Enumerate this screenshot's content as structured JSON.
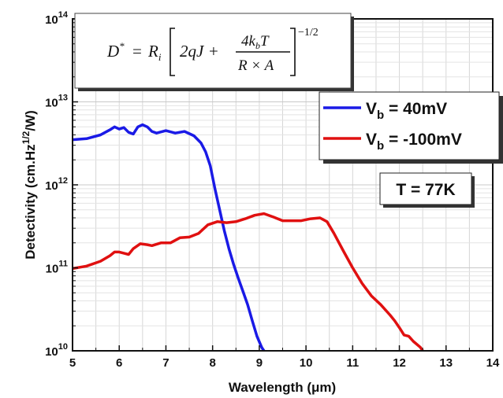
{
  "chart_data": {
    "type": "line",
    "xlabel": "Wavelength (μm)",
    "ylabel": "Detectivity (cm.Hz",
    "ylabel_sup": "1/2",
    "ylabel_tail": "/W)",
    "xlim": [
      5,
      14
    ],
    "ylim_log10": [
      10,
      14
    ],
    "y_scale": "log",
    "grid": true,
    "x_ticks": [
      "5",
      "6",
      "7",
      "8",
      "9",
      "10",
      "11",
      "12",
      "13",
      "14"
    ],
    "y_ticks": [
      {
        "base": "10",
        "exp": "10"
      },
      {
        "base": "10",
        "exp": "11"
      },
      {
        "base": "10",
        "exp": "12"
      },
      {
        "base": "10",
        "exp": "13"
      },
      {
        "base": "10",
        "exp": "14"
      }
    ],
    "series": [
      {
        "name": "V",
        "name_sub": "b",
        "name_tail": " = 40mV",
        "color": "#1a1ae6",
        "points": [
          [
            5.0,
            3500000000000.0
          ],
          [
            5.3,
            3600000000000.0
          ],
          [
            5.6,
            4000000000000.0
          ],
          [
            5.8,
            4600000000000.0
          ],
          [
            5.9,
            5000000000000.0
          ],
          [
            6.0,
            4700000000000.0
          ],
          [
            6.1,
            4900000000000.0
          ],
          [
            6.2,
            4300000000000.0
          ],
          [
            6.3,
            4100000000000.0
          ],
          [
            6.4,
            5000000000000.0
          ],
          [
            6.5,
            5300000000000.0
          ],
          [
            6.6,
            5000000000000.0
          ],
          [
            6.7,
            4400000000000.0
          ],
          [
            6.8,
            4200000000000.0
          ],
          [
            7.0,
            4500000000000.0
          ],
          [
            7.2,
            4200000000000.0
          ],
          [
            7.4,
            4400000000000.0
          ],
          [
            7.6,
            3900000000000.0
          ],
          [
            7.75,
            3200000000000.0
          ],
          [
            7.85,
            2500000000000.0
          ],
          [
            7.95,
            1700000000000.0
          ],
          [
            8.05,
            900000000000.0
          ],
          [
            8.15,
            500000000000.0
          ],
          [
            8.25,
            280000000000.0
          ],
          [
            8.35,
            170000000000.0
          ],
          [
            8.45,
            110000000000.0
          ],
          [
            8.55,
            75000000000.0
          ],
          [
            8.65,
            52000000000.0
          ],
          [
            8.75,
            36000000000.0
          ],
          [
            8.85,
            23000000000.0
          ],
          [
            8.95,
            15000000000.0
          ],
          [
            9.05,
            11000000000.0
          ],
          [
            9.1,
            10000000000.0
          ]
        ]
      },
      {
        "name": "V",
        "name_sub": "b",
        "name_tail": " = -100mV",
        "color": "#e01010",
        "points": [
          [
            5.0,
            98000000000.0
          ],
          [
            5.3,
            105000000000.0
          ],
          [
            5.6,
            120000000000.0
          ],
          [
            5.8,
            140000000000.0
          ],
          [
            5.9,
            155000000000.0
          ],
          [
            6.0,
            155000000000.0
          ],
          [
            6.1,
            150000000000.0
          ],
          [
            6.2,
            145000000000.0
          ],
          [
            6.3,
            170000000000.0
          ],
          [
            6.45,
            195000000000.0
          ],
          [
            6.6,
            190000000000.0
          ],
          [
            6.7,
            185000000000.0
          ],
          [
            6.9,
            200000000000.0
          ],
          [
            7.1,
            200000000000.0
          ],
          [
            7.3,
            230000000000.0
          ],
          [
            7.5,
            235000000000.0
          ],
          [
            7.7,
            260000000000.0
          ],
          [
            7.9,
            330000000000.0
          ],
          [
            8.1,
            360000000000.0
          ],
          [
            8.3,
            350000000000.0
          ],
          [
            8.5,
            360000000000.0
          ],
          [
            8.7,
            390000000000.0
          ],
          [
            8.9,
            430000000000.0
          ],
          [
            9.1,
            450000000000.0
          ],
          [
            9.3,
            410000000000.0
          ],
          [
            9.5,
            370000000000.0
          ],
          [
            9.7,
            370000000000.0
          ],
          [
            9.9,
            370000000000.0
          ],
          [
            10.1,
            390000000000.0
          ],
          [
            10.3,
            400000000000.0
          ],
          [
            10.45,
            360000000000.0
          ],
          [
            10.6,
            260000000000.0
          ],
          [
            10.8,
            160000000000.0
          ],
          [
            11.0,
            100000000000.0
          ],
          [
            11.2,
            65000000000.0
          ],
          [
            11.4,
            46000000000.0
          ],
          [
            11.6,
            36000000000.0
          ],
          [
            11.8,
            27000000000.0
          ],
          [
            11.9,
            23000000000.0
          ],
          [
            12.0,
            19000000000.0
          ],
          [
            12.1,
            15500000000.0
          ],
          [
            12.2,
            15000000000.0
          ],
          [
            12.3,
            13000000000.0
          ],
          [
            12.45,
            11000000000.0
          ],
          [
            12.5,
            10000000000.0
          ]
        ]
      }
    ],
    "legend_position": "top-right",
    "annotation": "T = 77K",
    "formula": {
      "lhs": "D",
      "lhs_sup": "*",
      "eq": "= ",
      "ri": "R",
      "ri_sub": "i",
      "term1": "2qJ +",
      "num": "4k",
      "num_sub": "b",
      "num_tail": "T",
      "den": "R × A",
      "exponent": "−1/2"
    }
  }
}
